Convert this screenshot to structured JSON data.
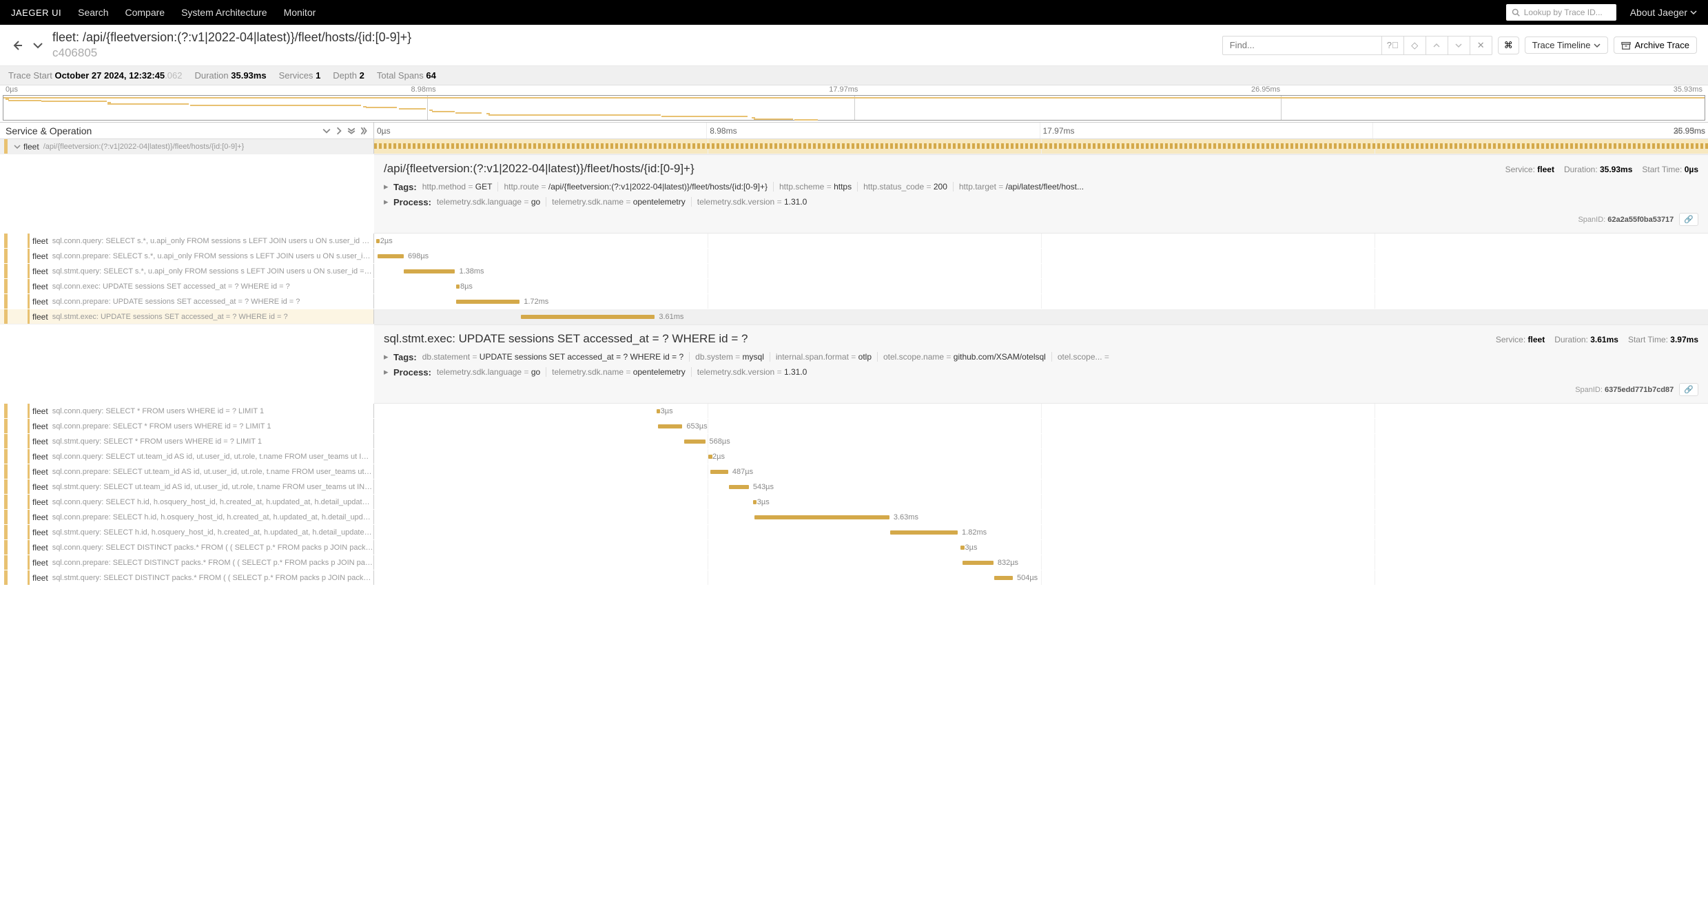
{
  "nav": {
    "brand": "JAEGER UI",
    "links": [
      "Search",
      "Compare",
      "System Architecture",
      "Monitor"
    ],
    "lookup_placeholder": "Lookup by Trace ID...",
    "about": "About Jaeger"
  },
  "header": {
    "service": "fleet",
    "title": "/api/{fleetversion:(?:v1|2022-04|latest)}/fleet/hosts/{id:[0-9]+}",
    "trace_id": "c406805",
    "find_placeholder": "Find...",
    "timeline_label": "Trace Timeline",
    "archive_label": "Archive Trace"
  },
  "stats": {
    "trace_start_label": "Trace Start",
    "trace_start": "October 27 2024, 12:32:45",
    "trace_start_ms": ".062",
    "duration_label": "Duration",
    "duration": "35.93ms",
    "services_label": "Services",
    "services": "1",
    "depth_label": "Depth",
    "depth": "2",
    "total_spans_label": "Total Spans",
    "total_spans": "64"
  },
  "minimap_ticks": [
    "0µs",
    "8.98ms",
    "17.97ms",
    "26.95ms",
    "35.93ms"
  ],
  "column_header": "Service & Operation",
  "timeline_ticks": [
    "0µs",
    "8.98ms",
    "17.97ms",
    "26.95ms",
    "35.93ms"
  ],
  "total_duration_ms": 35.93,
  "service_color": "#e8c171",
  "bar_color": "#d4a94a",
  "spans": [
    {
      "id": "root",
      "service": "fleet",
      "op": "/api/{fleetversion:(?:v1|2022-04|latest)}/fleet/hosts/{id:[0-9]+}",
      "depth": 0,
      "start": 0,
      "dur": 35.93,
      "dur_label": "35.93ms",
      "expanded": true,
      "root": true
    },
    {
      "id": "s1",
      "service": "fleet",
      "op": "sql.conn.query: SELECT s.*, u.api_only FROM sessions s LEFT JOIN users u ON s.user_id = u.id WHERE s.`key` =…",
      "depth": 1,
      "start": 0.05,
      "dur": 0.002,
      "dur_label": "2µs"
    },
    {
      "id": "s2",
      "service": "fleet",
      "op": "sql.conn.prepare: SELECT s.*, u.api_only FROM sessions s LEFT JOIN users u ON s.user_id = u.id WHERE s.`key`…",
      "depth": 1,
      "start": 0.1,
      "dur": 0.698,
      "dur_label": "698µs"
    },
    {
      "id": "s3",
      "service": "fleet",
      "op": "sql.stmt.query: SELECT s.*, u.api_only FROM sessions s LEFT JOIN users u ON s.user_id = u.id WHERE s.`key` =…",
      "depth": 1,
      "start": 0.8,
      "dur": 1.38,
      "dur_label": "1.38ms"
    },
    {
      "id": "s4",
      "service": "fleet",
      "op": "sql.conn.exec: UPDATE sessions SET accessed_at = ? WHERE id = ?",
      "depth": 1,
      "start": 2.2,
      "dur": 0.008,
      "dur_label": "8µs"
    },
    {
      "id": "s5",
      "service": "fleet",
      "op": "sql.conn.prepare: UPDATE sessions SET accessed_at = ? WHERE id = ?",
      "depth": 1,
      "start": 2.2,
      "dur": 1.72,
      "dur_label": "1.72ms"
    },
    {
      "id": "s6",
      "service": "fleet",
      "op": "sql.stmt.exec: UPDATE sessions SET accessed_at = ? WHERE id = ?",
      "depth": 1,
      "start": 3.95,
      "dur": 3.61,
      "dur_label": "3.61ms",
      "expanded": true
    },
    {
      "id": "s7",
      "service": "fleet",
      "op": "sql.conn.query: SELECT * FROM users WHERE id = ? LIMIT 1",
      "depth": 1,
      "start": 7.6,
      "dur": 0.003,
      "dur_label": "3µs"
    },
    {
      "id": "s8",
      "service": "fleet",
      "op": "sql.conn.prepare: SELECT * FROM users WHERE id = ? LIMIT 1",
      "depth": 1,
      "start": 7.65,
      "dur": 0.653,
      "dur_label": "653µs"
    },
    {
      "id": "s9",
      "service": "fleet",
      "op": "sql.stmt.query: SELECT * FROM users WHERE id = ? LIMIT 1",
      "depth": 1,
      "start": 8.35,
      "dur": 0.568,
      "dur_label": "568µs"
    },
    {
      "id": "s10",
      "service": "fleet",
      "op": "sql.conn.query: SELECT ut.team_id AS id, ut.user_id, ut.role, t.name FROM user_teams ut INNER JOIN teams t O…",
      "depth": 1,
      "start": 9.0,
      "dur": 0.002,
      "dur_label": "2µs"
    },
    {
      "id": "s11",
      "service": "fleet",
      "op": "sql.conn.prepare: SELECT ut.team_id AS id, ut.user_id, ut.role, t.name FROM user_teams ut INNER JOIN teams t…",
      "depth": 1,
      "start": 9.05,
      "dur": 0.487,
      "dur_label": "487µs"
    },
    {
      "id": "s12",
      "service": "fleet",
      "op": "sql.stmt.query: SELECT ut.team_id AS id, ut.user_id, ut.role, t.name FROM user_teams ut INNER JOIN teams t O…",
      "depth": 1,
      "start": 9.55,
      "dur": 0.543,
      "dur_label": "543µs"
    },
    {
      "id": "s13",
      "service": "fleet",
      "op": "sql.conn.query: SELECT h.id, h.osquery_host_id, h.created_at, h.updated_at, h.detail_updated_at, h.node_key, h…",
      "depth": 1,
      "start": 10.2,
      "dur": 0.003,
      "dur_label": "3µs"
    },
    {
      "id": "s14",
      "service": "fleet",
      "op": "sql.conn.prepare: SELECT h.id, h.osquery_host_id, h.created_at, h.updated_at, h.detail_updated_at, h.node_key,…",
      "depth": 1,
      "start": 10.25,
      "dur": 3.63,
      "dur_label": "3.63ms"
    },
    {
      "id": "s15",
      "service": "fleet",
      "op": "sql.stmt.query: SELECT h.id, h.osquery_host_id, h.created_at, h.updated_at, h.detail_updated_at, h.node_key, h…",
      "depth": 1,
      "start": 13.9,
      "dur": 1.82,
      "dur_label": "1.82ms"
    },
    {
      "id": "s16",
      "service": "fleet",
      "op": "sql.conn.query: SELECT DISTINCT packs.* FROM ( ( SELECT p.* FROM packs p JOIN pack_targets pt JOIN label_…",
      "depth": 1,
      "start": 15.8,
      "dur": 0.003,
      "dur_label": "3µs"
    },
    {
      "id": "s17",
      "service": "fleet",
      "op": "sql.conn.prepare: SELECT DISTINCT packs.* FROM ( ( SELECT p.* FROM packs p JOIN pack_targets pt JOIN labe…",
      "depth": 1,
      "start": 15.85,
      "dur": 0.832,
      "dur_label": "832µs"
    },
    {
      "id": "s18",
      "service": "fleet",
      "op": "sql.stmt.query: SELECT DISTINCT packs.* FROM ( ( SELECT p.* FROM packs p JOIN pack_targets pt JOIN label_…",
      "depth": 1,
      "start": 16.7,
      "dur": 0.504,
      "dur_label": "504µs"
    }
  ],
  "detail1": {
    "title": "/api/{fleetversion:(?:v1|2022-04|latest)}/fleet/hosts/{id:[0-9]+}",
    "service_label": "Service:",
    "service": "fleet",
    "duration_label": "Duration:",
    "duration": "35.93ms",
    "start_label": "Start Time:",
    "start": "0µs",
    "tags_label": "Tags:",
    "tags": [
      {
        "k": "http.method",
        "v": "GET"
      },
      {
        "k": "http.route",
        "v": "/api/{fleetversion:(?:v1|2022-04|latest)}/fleet/hosts/{id:[0-9]+}"
      },
      {
        "k": "http.scheme",
        "v": "https"
      },
      {
        "k": "http.status_code",
        "v": "200"
      },
      {
        "k": "http.target",
        "v": "/api/latest/fleet/host..."
      }
    ],
    "process_label": "Process:",
    "process": [
      {
        "k": "telemetry.sdk.language",
        "v": "go"
      },
      {
        "k": "telemetry.sdk.name",
        "v": "opentelemetry"
      },
      {
        "k": "telemetry.sdk.version",
        "v": "1.31.0"
      }
    ],
    "span_id_label": "SpanID:",
    "span_id": "62a2a55f0ba53717"
  },
  "detail2": {
    "title": "sql.stmt.exec: UPDATE sessions SET accessed_at = ? WHERE id = ?",
    "service_label": "Service:",
    "service": "fleet",
    "duration_label": "Duration:",
    "duration": "3.61ms",
    "start_label": "Start Time:",
    "start": "3.97ms",
    "tags_label": "Tags:",
    "tags": [
      {
        "k": "db.statement",
        "v": "UPDATE sessions SET accessed_at = ? WHERE id = ?"
      },
      {
        "k": "db.system",
        "v": "mysql"
      },
      {
        "k": "internal.span.format",
        "v": "otlp"
      },
      {
        "k": "otel.scope.name",
        "v": "github.com/XSAM/otelsql"
      },
      {
        "k": "otel.scope...",
        "v": ""
      }
    ],
    "process_label": "Process:",
    "process": [
      {
        "k": "telemetry.sdk.language",
        "v": "go"
      },
      {
        "k": "telemetry.sdk.name",
        "v": "opentelemetry"
      },
      {
        "k": "telemetry.sdk.version",
        "v": "1.31.0"
      }
    ],
    "span_id_label": "SpanID:",
    "span_id": "6375edd771b7cd87"
  }
}
